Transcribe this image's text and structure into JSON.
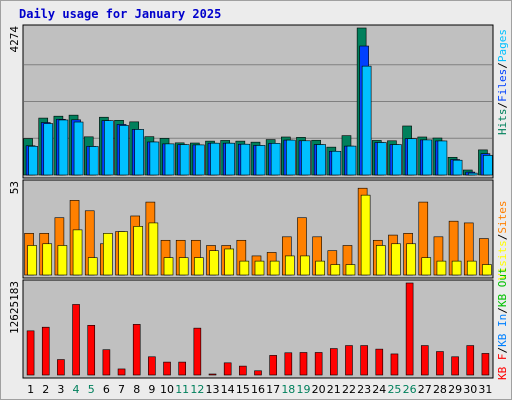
{
  "chart_data": {
    "type": "bar",
    "title": "Daily usage for January 2025",
    "categories": [
      "1",
      "2",
      "3",
      "4",
      "5",
      "6",
      "7",
      "8",
      "9",
      "10",
      "11",
      "12",
      "13",
      "14",
      "15",
      "16",
      "17",
      "18",
      "19",
      "20",
      "21",
      "22",
      "23",
      "24",
      "25",
      "26",
      "27",
      "28",
      "29",
      "30",
      "31"
    ],
    "weekend_days": [
      4,
      5,
      11,
      12,
      18,
      19,
      25,
      26
    ],
    "colors": {
      "background": "#ececec",
      "panel": "#c0c0c0",
      "gridline": "#808080",
      "weekday_label": "#000000",
      "weekend_label": "#00805c",
      "hits": "#00805c",
      "files": "#0040ff",
      "pages": "#00c0ff",
      "visits": "#ffff00",
      "sites": "#ff8000",
      "kb_f": "#ff0000",
      "kb_in": "#0080ff",
      "kb_out": "#00c000",
      "title": "#0000cc"
    },
    "panels": [
      {
        "name": "requests",
        "ymax_label": "4274",
        "ylim": [
          0,
          4274
        ],
        "right_legend": [
          {
            "text": "Hits",
            "color": "#00805c"
          },
          {
            "text": "/",
            "color": "#000000"
          },
          {
            "text": "Files",
            "color": "#0040ff"
          },
          {
            "text": "/",
            "color": "#000000"
          },
          {
            "text": "Pages",
            "color": "#00c0ff"
          }
        ],
        "series": [
          {
            "name": "Hits",
            "color": "#00805c",
            "values": [
              1060,
              1655,
              1710,
              1740,
              1110,
              1680,
              1590,
              1545,
              1115,
              1065,
              935,
              930,
              985,
              1005,
              985,
              955,
              1030,
              1105,
              1095,
              1010,
              810,
              1145,
              4274,
              1005,
              995,
              1425,
              1105,
              1075,
              515,
              145,
              730
            ]
          },
          {
            "name": "Files",
            "color": "#0040ff",
            "values": [
              850,
              1525,
              1620,
              1605,
              835,
              1580,
              1470,
              1325,
              960,
              905,
              885,
              875,
              925,
              925,
              895,
              860,
              920,
              1015,
              995,
              885,
              690,
              840,
              3750,
              945,
              885,
              1055,
              1020,
              990,
              450,
              85,
              620
            ]
          },
          {
            "name": "Pages",
            "color": "#00c0ff",
            "values": [
              835,
              1495,
              1600,
              1540,
              830,
              1580,
              1440,
              1325,
              960,
              905,
              885,
              875,
              925,
              925,
              895,
              860,
              920,
              1015,
              995,
              885,
              690,
              840,
              3165,
              945,
              885,
              1055,
              1020,
              990,
              430,
              55,
              570
            ]
          }
        ]
      },
      {
        "name": "visits",
        "ymax_label": "53",
        "ylim": [
          0,
          53
        ],
        "right_legend": [
          {
            "text": "Visits",
            "color": "#ffff00"
          },
          {
            "text": "/",
            "color": "#000000"
          },
          {
            "text": "Sites",
            "color": "#ff8000"
          }
        ],
        "series": [
          {
            "name": "Sites",
            "color": "#ff8000",
            "values": [
              24,
              24,
              33,
              43,
              37,
              18,
              25,
              34,
              42,
              20,
              20,
              20,
              17,
              17,
              20,
              11,
              13,
              22,
              33,
              22,
              14,
              17,
              50,
              20,
              23,
              24,
              42,
              22,
              31,
              30,
              21
            ]
          },
          {
            "name": "Visits",
            "color": "#ffff00",
            "values": [
              17,
              18,
              17,
              26,
              10,
              24,
              25,
              28,
              30,
              10,
              10,
              10,
              14,
              15,
              8,
              8,
              8,
              11,
              11,
              8,
              6,
              6,
              46,
              17,
              18,
              18,
              10,
              8,
              8,
              8,
              6
            ]
          }
        ]
      },
      {
        "name": "traffic",
        "ymax_label": "12625183",
        "ylim": [
          0,
          12625183
        ],
        "right_legend": [
          {
            "text": "KB F",
            "color": "#ff0000"
          },
          {
            "text": "/",
            "color": "#000000"
          },
          {
            "text": "KB In",
            "color": "#0080ff"
          },
          {
            "text": "/",
            "color": "#000000"
          },
          {
            "text": "KB Out",
            "color": "#00c000"
          }
        ],
        "series": [
          {
            "name": "KB F",
            "color": "#ff0000",
            "values": [
              6060000,
              6560000,
              2120000,
              9680000,
              6820000,
              3470000,
              830000,
              6950000,
              2500000,
              1770000,
              1770000,
              6430000,
              130000,
              1670000,
              1220000,
              580000,
              2690000,
              3050000,
              3090000,
              3090000,
              3630000,
              4040000,
              4040000,
              3550000,
              2890000,
              12625183,
              4040000,
              3220000,
              2500000,
              4040000,
              2960000
            ]
          }
        ]
      }
    ]
  }
}
